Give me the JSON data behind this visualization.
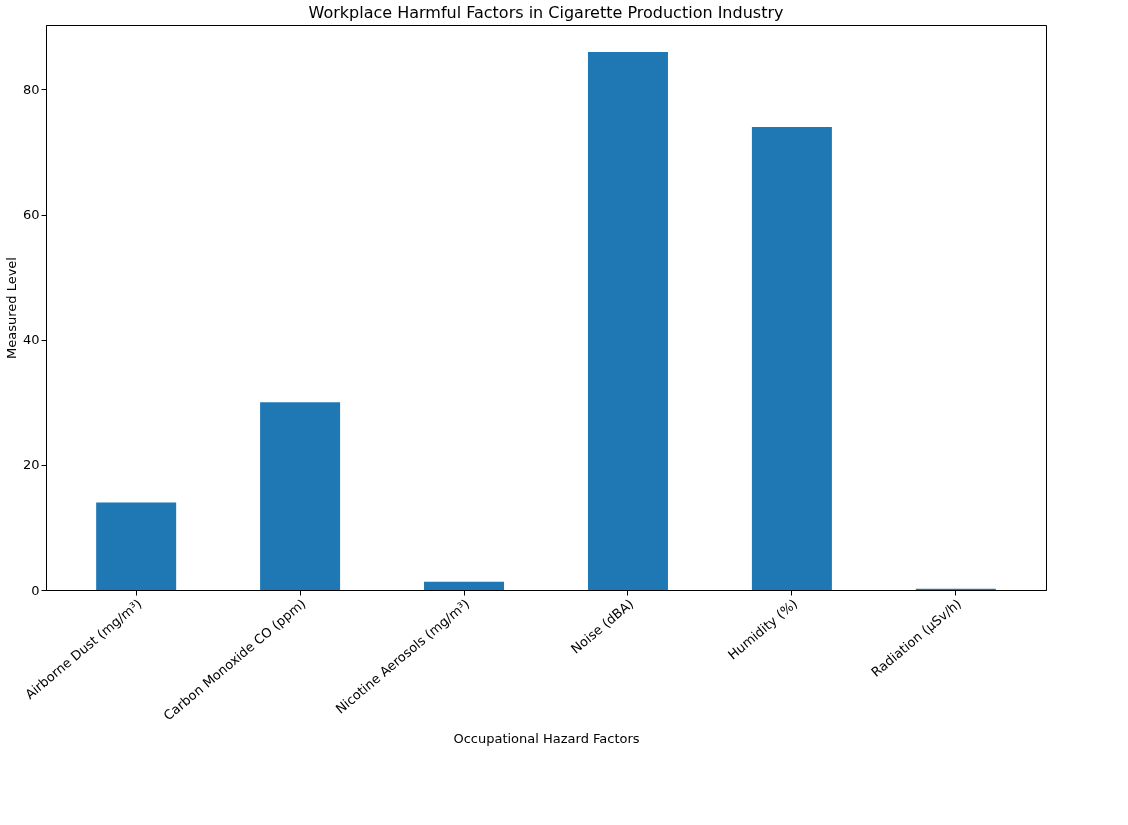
{
  "chart_data": {
    "type": "bar",
    "title": "Workplace Harmful Factors in Cigarette Production Industry",
    "xlabel": "Occupational Hazard Factors",
    "ylabel": "Measured Level",
    "categories": [
      "Airborne Dust (mg/m³)",
      "Carbon Monoxide CO (ppm)",
      "Nicotine Aerosols (mg/m³)",
      "Noise (dBA)",
      "Humidity (%)",
      "Radiation (μSv/h)"
    ],
    "values": [
      14,
      30,
      1.3,
      86,
      74,
      0.2
    ],
    "color": "#1f77b4",
    "ylim": [
      0,
      90.3
    ],
    "yticks": [
      0,
      20,
      40,
      60,
      80
    ],
    "grid": false
  }
}
